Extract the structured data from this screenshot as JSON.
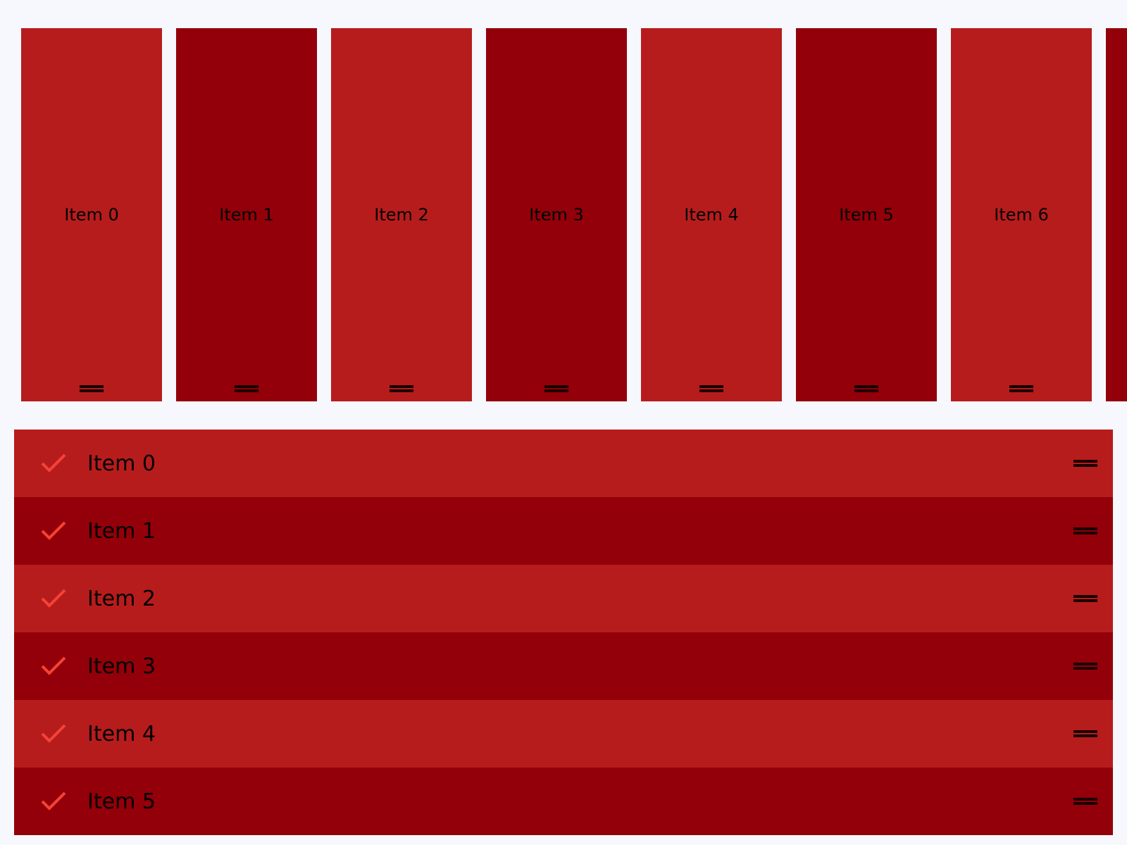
{
  "colors": {
    "light": "#b71c1c",
    "dark": "#930009",
    "check": "#f44336",
    "background": "#f6f8fe"
  },
  "horizontal_list": {
    "items": [
      {
        "label": "Item 0"
      },
      {
        "label": "Item 1"
      },
      {
        "label": "Item 2"
      },
      {
        "label": "Item 3"
      },
      {
        "label": "Item 4"
      },
      {
        "label": "Item 5"
      },
      {
        "label": "Item 6"
      },
      {
        "label": ""
      }
    ]
  },
  "vertical_list": {
    "items": [
      {
        "label": "Item 0",
        "icon": "check-icon"
      },
      {
        "label": "Item 1",
        "icon": "check-icon"
      },
      {
        "label": "Item 2",
        "icon": "check-icon"
      },
      {
        "label": "Item 3",
        "icon": "check-icon"
      },
      {
        "label": "Item 4",
        "icon": "check-icon"
      },
      {
        "label": "Item 5",
        "icon": "check-icon"
      }
    ]
  }
}
